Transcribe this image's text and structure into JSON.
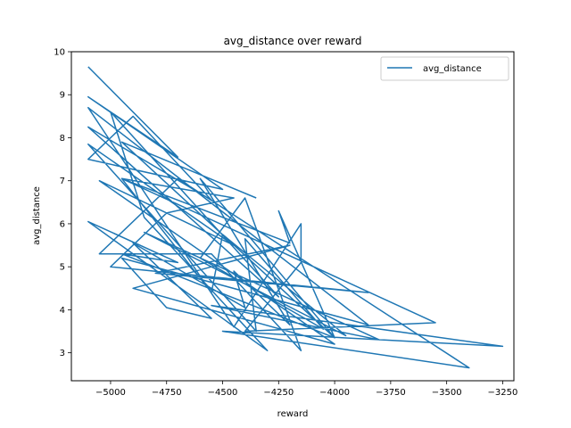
{
  "chart_data": {
    "type": "line",
    "title": "avg_distance over reward",
    "xlabel": "reward",
    "ylabel": "avg_distance",
    "xlim": [
      -5175,
      -3200
    ],
    "ylim": [
      2.35,
      10
    ],
    "xticks": [
      -5000,
      -4750,
      -4500,
      -4250,
      -4000,
      -3750,
      -3500,
      -3250
    ],
    "xtick_labels": [
      "−5000",
      "−4750",
      "−4500",
      "−4250",
      "−4000",
      "−3750",
      "−3500",
      "−3250"
    ],
    "yticks": [
      3,
      4,
      5,
      6,
      7,
      8,
      9,
      10
    ],
    "ytick_labels": [
      "3",
      "4",
      "5",
      "6",
      "7",
      "8",
      "9",
      "10"
    ],
    "grid": false,
    "legend": {
      "position": "top-right",
      "entries": [
        "avg_distance"
      ]
    },
    "series": [
      {
        "name": "avg_distance",
        "color": "#1f77b4",
        "x": [
          -5100,
          -4700,
          -5100,
          -4500,
          -5100,
          -4900,
          -4550,
          -5100,
          -4250,
          -5000,
          -4850,
          -4300,
          -5100,
          -4700,
          -4950,
          -4000,
          -4600,
          -4200,
          -4450,
          -4400,
          -4900,
          -4550,
          -4750,
          -4950,
          -3850,
          -5100,
          -4450,
          -4150,
          -4150,
          -4400,
          -3550,
          -4950,
          -4550,
          -4500,
          -3950,
          -4850,
          -3800,
          -4550,
          -3250,
          -4500,
          -3400,
          -4700,
          -5050,
          -4550,
          -4150,
          -4400,
          -4600,
          -4050,
          -4400,
          -4350,
          -5100,
          -4450,
          -5050,
          -4000,
          -4900,
          -4200,
          -4800,
          -3850,
          -5000,
          -4750,
          -4450,
          -4950,
          -4200,
          -4250,
          -4000,
          -4950,
          -4350
        ],
        "y": [
          9.65,
          7.55,
          8.95,
          6.8,
          7.5,
          8.5,
          6.55,
          8.25,
          4.3,
          8.6,
          6.15,
          3.05,
          6.05,
          5.1,
          5.3,
          3.35,
          7.05,
          3.65,
          4.9,
          4.05,
          5.55,
          3.8,
          4.05,
          5.2,
          3.65,
          8.7,
          3.6,
          6.0,
          5.1,
          3.5,
          3.7,
          7.05,
          4.4,
          5.75,
          3.4,
          5.8,
          3.3,
          4.1,
          3.15,
          3.5,
          2.65,
          7.05,
          5.3,
          5.3,
          3.05,
          6.6,
          5.2,
          3.55,
          5.65,
          3.5,
          7.85,
          5.5,
          7.0,
          3.2,
          4.5,
          5.5,
          4.85,
          4.4,
          5.0,
          6.25,
          6.6,
          7.05,
          5.55,
          6.3,
          3.35,
          7.9,
          6.6
        ]
      }
    ]
  }
}
